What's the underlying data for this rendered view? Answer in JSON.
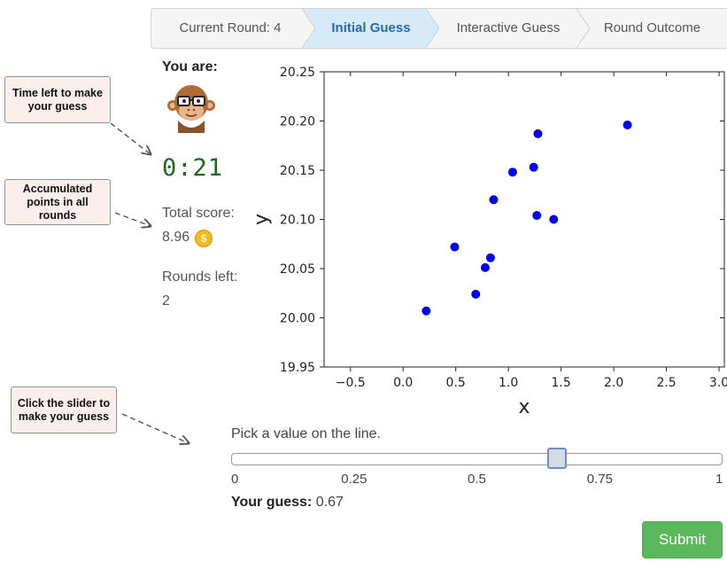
{
  "steps": [
    {
      "label": "Current Round: 4",
      "active": false
    },
    {
      "label": "Initial Guess",
      "active": true
    },
    {
      "label": "Interactive Guess",
      "active": false
    },
    {
      "label": "Round Outcome",
      "active": false
    }
  ],
  "callouts": {
    "time": "Time left to make your guess",
    "points": "Accumulated points in all rounds",
    "slider": "Click the slider to make your guess"
  },
  "player": {
    "you_are_label": "You are:",
    "avatar_icon": "monkey-with-glasses-icon",
    "timer": "0:21"
  },
  "score": {
    "label": "Total score:",
    "value": "8.96",
    "coin_icon": "coin-icon",
    "coin_symbol": "$"
  },
  "rounds": {
    "label": "Rounds left:",
    "value": "2"
  },
  "chart_data": {
    "type": "scatter",
    "title": "",
    "xlabel": "x",
    "ylabel": "y",
    "xlim": [
      -0.75,
      3.05
    ],
    "ylim": [
      19.95,
      20.25
    ],
    "xticks": [
      "−0.5",
      "0.0",
      "0.5",
      "1.0",
      "1.5",
      "2.0",
      "2.5",
      "3.0"
    ],
    "xtick_values": [
      -0.5,
      0.0,
      0.5,
      1.0,
      1.5,
      2.0,
      2.5,
      3.0
    ],
    "yticks": [
      "19.95",
      "20.00",
      "20.05",
      "20.10",
      "20.15",
      "20.20",
      "20.25"
    ],
    "ytick_values": [
      19.95,
      20.0,
      20.05,
      20.1,
      20.15,
      20.2,
      20.25
    ],
    "point_color": "#0000ee",
    "grid": false,
    "points": [
      {
        "x": 0.22,
        "y": 20.007
      },
      {
        "x": 0.49,
        "y": 20.072
      },
      {
        "x": 0.69,
        "y": 20.024
      },
      {
        "x": 0.78,
        "y": 20.051
      },
      {
        "x": 0.83,
        "y": 20.061
      },
      {
        "x": 0.86,
        "y": 20.12
      },
      {
        "x": 1.04,
        "y": 20.148
      },
      {
        "x": 1.24,
        "y": 20.153
      },
      {
        "x": 1.27,
        "y": 20.104
      },
      {
        "x": 1.28,
        "y": 20.187
      },
      {
        "x": 1.43,
        "y": 20.1
      },
      {
        "x": 2.13,
        "y": 20.196
      }
    ]
  },
  "slider": {
    "prompt": "Pick a value on the line.",
    "min": 0,
    "max": 1,
    "value": 0.67,
    "tick_labels": [
      "0",
      "0.25",
      "0.5",
      "0.75",
      "1"
    ],
    "tick_values": [
      0,
      0.25,
      0.5,
      0.75,
      1
    ],
    "guess_label": "Your guess:",
    "guess_value": "0.67"
  },
  "submit_label": "Submit",
  "colors": {
    "active_step": "#d6ebf7",
    "submit": "#5cb85c",
    "timer": "#1a6b1a",
    "points": "#0000ee"
  }
}
